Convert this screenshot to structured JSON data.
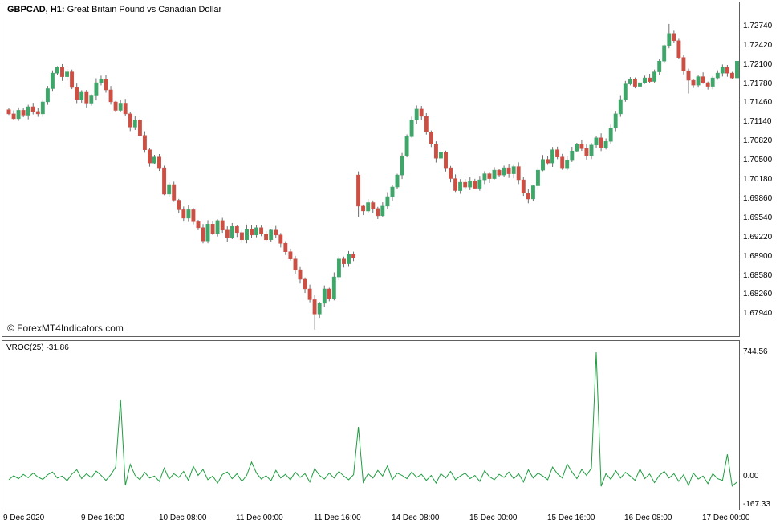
{
  "header": {
    "symbol": "GBPCAD, H1:",
    "description": "Great Britain Pound vs Canadian Dollar"
  },
  "watermark": "© ForexMT4Indicators.com",
  "indicator": {
    "label": "VROC(25) -31.86",
    "name": "VROC",
    "period": 25,
    "current_value": -31.86
  },
  "colors": {
    "up_candle": "#3fa66a",
    "down_candle": "#cc4f44",
    "wick": "#6e6e6e",
    "vroc_line": "#1f9d40",
    "panel_border": "#5f5f5f",
    "text": "#000000",
    "background": "#ffffff"
  },
  "chart_data": [
    {
      "type": "candlestick",
      "title": "GBPCAD H1 candlestick chart",
      "first_open": 1.7135,
      "closes": [
        1.7128,
        1.712,
        1.7134,
        1.7126,
        1.714,
        1.7132,
        1.7128,
        1.7148,
        1.717,
        1.7196,
        1.7206,
        1.719,
        1.7198,
        1.7172,
        1.7152,
        1.7164,
        1.7146,
        1.7158,
        1.718,
        1.7186,
        1.7168,
        1.7148,
        1.7134,
        1.7146,
        1.7128,
        1.7106,
        1.7118,
        1.7092,
        1.7068,
        1.7046,
        1.7056,
        1.7038,
        1.6994,
        1.701,
        1.6984,
        1.6968,
        1.6954,
        1.6968,
        1.6948,
        1.6938,
        1.6916,
        1.6944,
        1.6928,
        1.695,
        1.6934,
        1.6922,
        1.694,
        1.693,
        1.6918,
        1.6936,
        1.6926,
        1.6938,
        1.6928,
        1.6918,
        1.6934,
        1.6926,
        1.6912,
        1.6898,
        1.6886,
        1.6868,
        1.6852,
        1.6836,
        1.6818,
        1.6794,
        1.6812,
        1.6836,
        1.682,
        1.6856,
        1.6886,
        1.6878,
        1.6894,
        1.6888,
        1.6974,
        1.6966,
        1.698,
        1.697,
        1.6958,
        1.6974,
        1.699,
        1.7006,
        1.7026,
        1.7058,
        1.709,
        1.7118,
        1.7136,
        1.7124,
        1.7098,
        1.7078,
        1.7054,
        1.7064,
        1.7038,
        1.702,
        1.7,
        1.7014,
        1.7006,
        1.7016,
        1.7004,
        1.7018,
        1.7028,
        1.702,
        1.7034,
        1.7026,
        1.7038,
        1.7028,
        1.704,
        1.7018,
        1.6996,
        1.6986,
        1.7008,
        1.7034,
        1.7052,
        1.7046,
        1.7068,
        1.7056,
        1.7038,
        1.705,
        1.7066,
        1.7078,
        1.707,
        1.7058,
        1.7076,
        1.7088,
        1.7072,
        1.7082,
        1.7104,
        1.7128,
        1.7152,
        1.7178,
        1.7186,
        1.7174,
        1.718,
        1.7188,
        1.7182,
        1.7198,
        1.7216,
        1.7242,
        1.7262,
        1.725,
        1.7222,
        1.72,
        1.7184,
        1.7176,
        1.719,
        1.718,
        1.7174,
        1.7188,
        1.7196,
        1.7206,
        1.7196,
        1.7188,
        1.7216
      ],
      "open_overrides": {
        "72": 1.7026
      },
      "high_overrides": {
        "72": 1.7032,
        "136": 1.7278
      },
      "low_overrides": {
        "63": 1.6768,
        "72": 1.6956,
        "140": 1.7162
      },
      "price_top": 1.7314,
      "price_bottom": 1.6757,
      "y_axis_labels": [
        "1.72740",
        "1.72420",
        "1.72100",
        "1.71780",
        "1.71460",
        "1.71140",
        "1.70820",
        "1.70500",
        "1.70180",
        "1.69860",
        "1.69540",
        "1.69220",
        "1.68900",
        "1.68580",
        "1.68260",
        "1.67940"
      ],
      "time_axis": [
        {
          "label": "9 Dec 2020",
          "index": 0
        },
        {
          "label": "9 Dec 16:00",
          "index": 16
        },
        {
          "label": "10 Dec 08:00",
          "index": 32
        },
        {
          "label": "11 Dec 00:00",
          "index": 48
        },
        {
          "label": "11 Dec 16:00",
          "index": 64
        },
        {
          "label": "14 Dec 08:00",
          "index": 80
        },
        {
          "label": "15 Dec 00:00",
          "index": 96
        },
        {
          "label": "15 Dec 16:00",
          "index": 112
        },
        {
          "label": "16 Dec 08:00",
          "index": 128
        },
        {
          "label": "17 Dec 00:00",
          "index": 144
        }
      ]
    },
    {
      "type": "line",
      "title": "VROC(25) Volume Rate of Change",
      "values": [
        -18,
        6,
        -12,
        14,
        -6,
        22,
        -2,
        -16,
        12,
        28,
        -8,
        4,
        -24,
        16,
        42,
        -12,
        18,
        -6,
        34,
        8,
        -22,
        12,
        58,
        462,
        -52,
        74,
        8,
        -18,
        26,
        -8,
        4,
        -28,
        52,
        -14,
        18,
        -4,
        32,
        -22,
        62,
        8,
        44,
        -18,
        4,
        -38,
        14,
        28,
        -12,
        18,
        -28,
        8,
        88,
        22,
        -14,
        6,
        -24,
        38,
        -8,
        14,
        -18,
        28,
        -4,
        18,
        -32,
        48,
        8,
        -14,
        22,
        -8,
        32,
        4,
        -18,
        12,
        298,
        -34,
        18,
        -8,
        38,
        4,
        66,
        -18,
        22,
        8,
        -12,
        28,
        -4,
        14,
        -22,
        8,
        -38,
        18,
        -8,
        32,
        -18,
        4,
        22,
        -12,
        8,
        -28,
        36,
        0,
        -18,
        14,
        -4,
        28,
        -12,
        18,
        -32,
        42,
        -8,
        22,
        4,
        -18,
        58,
        18,
        -8,
        76,
        28,
        -12,
        44,
        8,
        52,
        744.56,
        -58,
        18,
        -16,
        36,
        -8,
        26,
        4,
        -22,
        46,
        -12,
        16,
        -36,
        8,
        32,
        -8,
        18,
        -28,
        12,
        -52,
        22,
        -14,
        4,
        -42,
        18,
        -12,
        -22,
        134,
        -56,
        -31.86
      ],
      "ymax": 744.56,
      "ymin": -167.33,
      "y_axis_labels": [
        "744.56",
        "0.00",
        "-167.33"
      ]
    }
  ]
}
